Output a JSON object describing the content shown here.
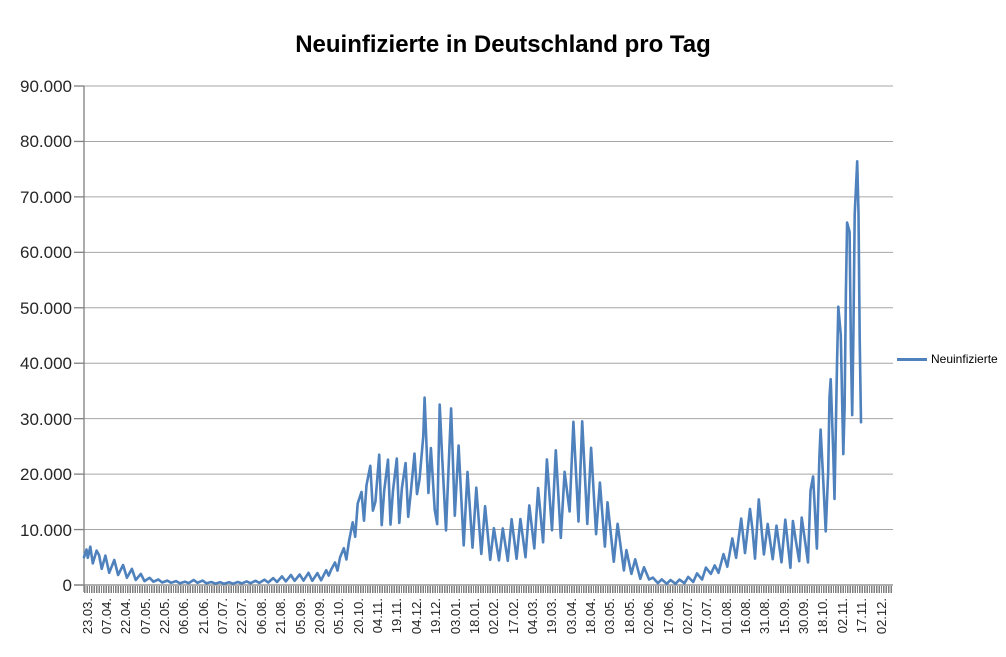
{
  "title": "Neuinfizierte in Deutschland pro Tag",
  "legend": {
    "label": "Neuinfizierte"
  },
  "colors": {
    "series": "#4F81BD",
    "gridline": "#A6A6A6",
    "axis": "#808080",
    "tick_strip": "#7F7F7F",
    "label_text": "#262626",
    "title_text": "#000000"
  },
  "chart_data": {
    "type": "line",
    "title": "Neuinfizierte in Deutschland pro Tag",
    "series_name": "Neuinfizierte",
    "legend_position": "right",
    "grid": "horizontal",
    "ylim": [
      0,
      90000
    ],
    "y_tick_values": [
      0,
      10000,
      20000,
      30000,
      40000,
      50000,
      60000,
      70000,
      80000,
      90000
    ],
    "y_tick_labels": [
      "0",
      "10.000",
      "20.000",
      "30.000",
      "40.000",
      "50.000",
      "60.000",
      "70.000",
      "80.000",
      "90.000"
    ],
    "x_tick_labels": [
      "23.03.",
      "07.04.",
      "22.04.",
      "07.05.",
      "22.05.",
      "06.06.",
      "21.06.",
      "07.07.",
      "22.07.",
      "06.08.",
      "21.08.",
      "05.09.",
      "20.09.",
      "05.10.",
      "20.10.",
      "04.11.",
      "19.11.",
      "04.12.",
      "19.12.",
      "03.01.",
      "18.01.",
      "02.02.",
      "17.02.",
      "04.03.",
      "19.03.",
      "03.04.",
      "18.04.",
      "03.05.",
      "18.05.",
      "02.06.",
      "17.06.",
      "02.07.",
      "17.07.",
      "01.08.",
      "16.08.",
      "31.08.",
      "15.09.",
      "30.09.",
      "18.10.",
      "02.11.",
      "17.11.",
      "02.12."
    ],
    "x_start_date": "23.03.2020",
    "x_end_date": "29.11.2021",
    "x_index_count": 616,
    "points": [
      [
        0,
        5000
      ],
      [
        2,
        6400
      ],
      [
        3,
        4900
      ],
      [
        5,
        6900
      ],
      [
        7,
        3900
      ],
      [
        10,
        6200
      ],
      [
        12,
        5400
      ],
      [
        14,
        2900
      ],
      [
        17,
        5300
      ],
      [
        20,
        2200
      ],
      [
        24,
        4500
      ],
      [
        27,
        1800
      ],
      [
        31,
        3600
      ],
      [
        34,
        1300
      ],
      [
        38,
        2900
      ],
      [
        41,
        900
      ],
      [
        45,
        2000
      ],
      [
        48,
        700
      ],
      [
        52,
        1300
      ],
      [
        55,
        600
      ],
      [
        59,
        1000
      ],
      [
        62,
        450
      ],
      [
        66,
        800
      ],
      [
        69,
        400
      ],
      [
        73,
        700
      ],
      [
        76,
        300
      ],
      [
        80,
        600
      ],
      [
        83,
        350
      ],
      [
        87,
        900
      ],
      [
        90,
        400
      ],
      [
        94,
        800
      ],
      [
        97,
        300
      ],
      [
        101,
        550
      ],
      [
        104,
        250
      ],
      [
        108,
        500
      ],
      [
        111,
        220
      ],
      [
        115,
        500
      ],
      [
        118,
        240
      ],
      [
        122,
        550
      ],
      [
        125,
        280
      ],
      [
        129,
        650
      ],
      [
        132,
        330
      ],
      [
        136,
        750
      ],
      [
        139,
        380
      ],
      [
        143,
        950
      ],
      [
        146,
        450
      ],
      [
        150,
        1250
      ],
      [
        153,
        550
      ],
      [
        157,
        1550
      ],
      [
        160,
        650
      ],
      [
        164,
        1800
      ],
      [
        167,
        750
      ],
      [
        171,
        1900
      ],
      [
        174,
        800
      ],
      [
        178,
        2200
      ],
      [
        181,
        750
      ],
      [
        185,
        2150
      ],
      [
        188,
        850
      ],
      [
        192,
        2670
      ],
      [
        194,
        1700
      ],
      [
        196,
        2800
      ],
      [
        199,
        4050
      ],
      [
        201,
        2600
      ],
      [
        203,
        5000
      ],
      [
        206,
        6640
      ],
      [
        208,
        4600
      ],
      [
        210,
        7800
      ],
      [
        213,
        11300
      ],
      [
        215,
        8700
      ],
      [
        217,
        14700
      ],
      [
        220,
        16800
      ],
      [
        222,
        11600
      ],
      [
        224,
        18000
      ],
      [
        227,
        21500
      ],
      [
        229,
        13400
      ],
      [
        231,
        15000
      ],
      [
        234,
        23500
      ],
      [
        236,
        10800
      ],
      [
        238,
        17000
      ],
      [
        241,
        22600
      ],
      [
        243,
        10900
      ],
      [
        245,
        17000
      ],
      [
        248,
        22800
      ],
      [
        250,
        11200
      ],
      [
        252,
        17500
      ],
      [
        255,
        22000
      ],
      [
        257,
        12300
      ],
      [
        259,
        16500
      ],
      [
        262,
        23700
      ],
      [
        264,
        16400
      ],
      [
        266,
        19000
      ],
      [
        269,
        26900
      ],
      [
        270,
        33800
      ],
      [
        273,
        16600
      ],
      [
        275,
        24700
      ],
      [
        278,
        13600
      ],
      [
        280,
        10980
      ],
      [
        282,
        32550
      ],
      [
        284,
        22900
      ],
      [
        287,
        9850
      ],
      [
        290,
        26400
      ],
      [
        291,
        31850
      ],
      [
        294,
        12500
      ],
      [
        297,
        25160
      ],
      [
        301,
        7140
      ],
      [
        304,
        20400
      ],
      [
        308,
        6730
      ],
      [
        311,
        17550
      ],
      [
        315,
        5610
      ],
      [
        318,
        14210
      ],
      [
        322,
        4540
      ],
      [
        325,
        10240
      ],
      [
        329,
        4430
      ],
      [
        332,
        10210
      ],
      [
        336,
        4370
      ],
      [
        339,
        11870
      ],
      [
        343,
        4730
      ],
      [
        346,
        11910
      ],
      [
        350,
        5010
      ],
      [
        353,
        14360
      ],
      [
        357,
        6600
      ],
      [
        360,
        17500
      ],
      [
        364,
        7710
      ],
      [
        367,
        22660
      ],
      [
        371,
        9870
      ],
      [
        374,
        24300
      ],
      [
        378,
        8500
      ],
      [
        381,
        20410
      ],
      [
        385,
        13250
      ],
      [
        388,
        29430
      ],
      [
        392,
        11440
      ],
      [
        395,
        29520
      ],
      [
        399,
        11020
      ],
      [
        402,
        24740
      ],
      [
        406,
        9160
      ],
      [
        409,
        18490
      ],
      [
        413,
        6920
      ],
      [
        415,
        14910
      ],
      [
        420,
        4210
      ],
      [
        423,
        11040
      ],
      [
        428,
        2630
      ],
      [
        430,
        6300
      ],
      [
        434,
        2000
      ],
      [
        437,
        4640
      ],
      [
        441,
        1110
      ],
      [
        444,
        3190
      ],
      [
        448,
        1000
      ],
      [
        451,
        1330
      ],
      [
        455,
        350
      ],
      [
        458,
        1010
      ],
      [
        462,
        220
      ],
      [
        465,
        900
      ],
      [
        469,
        210
      ],
      [
        472,
        970
      ],
      [
        476,
        320
      ],
      [
        479,
        1460
      ],
      [
        483,
        550
      ],
      [
        486,
        2090
      ],
      [
        490,
        1000
      ],
      [
        493,
        3140
      ],
      [
        497,
        2000
      ],
      [
        500,
        3540
      ],
      [
        503,
        2200
      ],
      [
        507,
        5580
      ],
      [
        510,
        3300
      ],
      [
        514,
        8400
      ],
      [
        517,
        4900
      ],
      [
        521,
        11970
      ],
      [
        524,
        5750
      ],
      [
        528,
        13720
      ],
      [
        530,
        10000
      ],
      [
        532,
        4750
      ],
      [
        535,
        15430
      ],
      [
        539,
        5510
      ],
      [
        542,
        11020
      ],
      [
        546,
        4660
      ],
      [
        549,
        10700
      ],
      [
        553,
        4100
      ],
      [
        556,
        11780
      ],
      [
        560,
        3100
      ],
      [
        562,
        11550
      ],
      [
        564,
        8500
      ],
      [
        567,
        4300
      ],
      [
        569,
        12150
      ],
      [
        571,
        9000
      ],
      [
        574,
        4060
      ],
      [
        576,
        17020
      ],
      [
        578,
        19570
      ],
      [
        581,
        6570
      ],
      [
        583,
        23210
      ],
      [
        584,
        28040
      ],
      [
        586,
        19050
      ],
      [
        588,
        9660
      ],
      [
        590,
        20400
      ],
      [
        591,
        33950
      ],
      [
        592,
        37120
      ],
      [
        594,
        23540
      ],
      [
        595,
        15510
      ],
      [
        597,
        39680
      ],
      [
        598,
        50200
      ],
      [
        600,
        45080
      ],
      [
        601,
        33500
      ],
      [
        602,
        23610
      ],
      [
        603,
        32050
      ],
      [
        604,
        52830
      ],
      [
        605,
        65370
      ],
      [
        607,
        63670
      ],
      [
        608,
        42730
      ],
      [
        609,
        30640
      ],
      [
        610,
        45330
      ],
      [
        611,
        66880
      ],
      [
        613,
        76410
      ],
      [
        614,
        67130
      ],
      [
        615,
        44400
      ],
      [
        616,
        29360
      ]
    ]
  }
}
